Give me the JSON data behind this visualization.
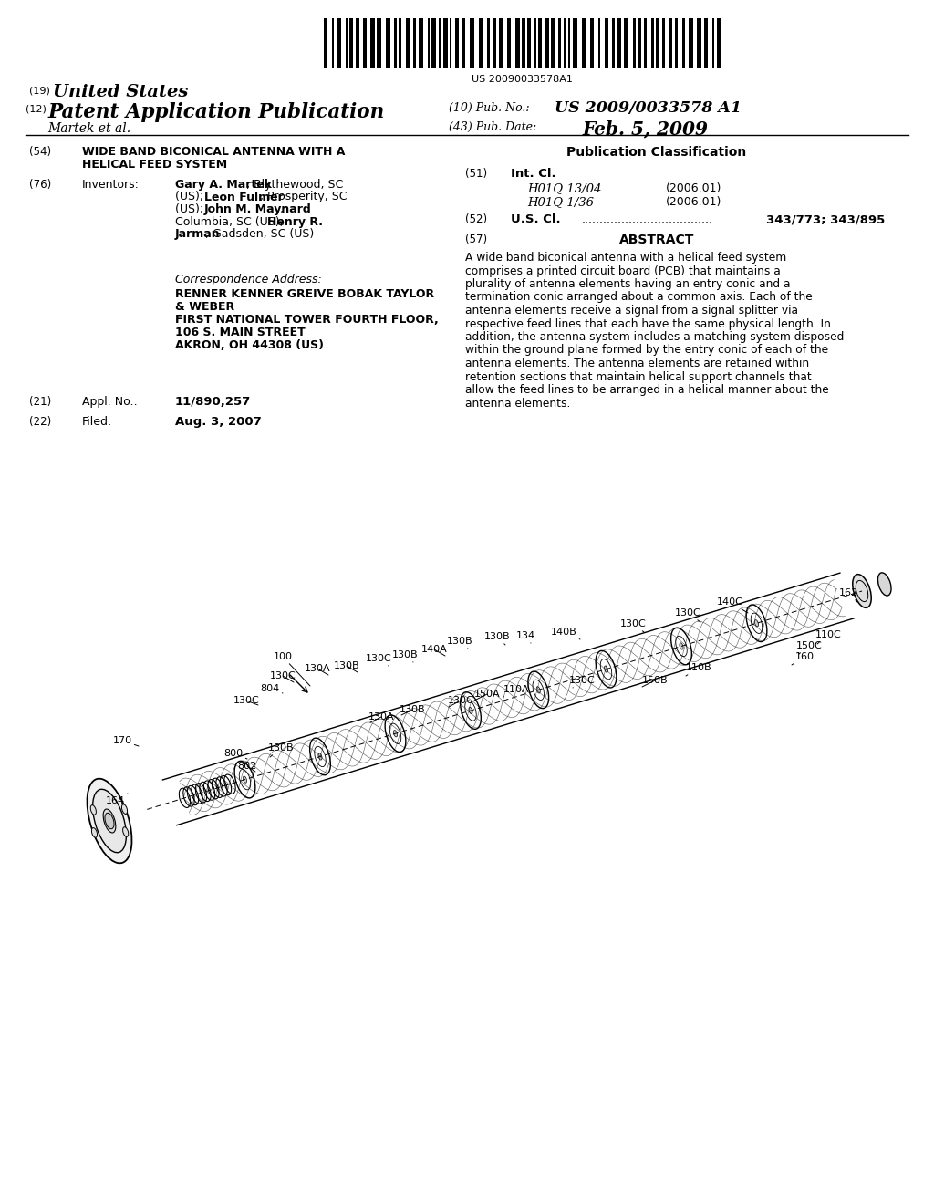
{
  "bg_color": "#ffffff",
  "page_width": 10.24,
  "page_height": 13.2,
  "barcode_text": "US 20090033578A1",
  "pub_no": "US 2009/0033578 A1",
  "pub_date": "Feb. 5, 2009",
  "title_line1": "WIDE BAND BICONICAL ANTENNA WITH A",
  "title_line2": "HELICAL FEED SYSTEM",
  "appl_no": "11/890,257",
  "filed_date": "Aug. 3, 2007",
  "pub_class_header": "Publication Classification",
  "abstract_text": "A wide band biconical antenna with a helical feed system comprises a printed circuit board (PCB) that maintains a plurality of antenna elements having an entry conic and a termination conic arranged about a common axis. Each of the antenna elements receive a signal from a signal splitter via respective feed lines that each have the same physical length. In addition, the antenna system includes a matching system disposed within the ground plane formed by the entry conic of each of the antenna elements. The antenna elements are retained within retention sections that maintain helical support channels that allow the feed lines to be arranged in a helical manner about the antenna elements.",
  "corr_address_lines": [
    "RENNER KENNER GREIVE BOBAK TAYLOR",
    "& WEBER",
    "FIRST NATIONAL TOWER FOURTH FLOOR,",
    "106 S. MAIN STREET",
    "AKRON, OH 44308 (US)"
  ]
}
